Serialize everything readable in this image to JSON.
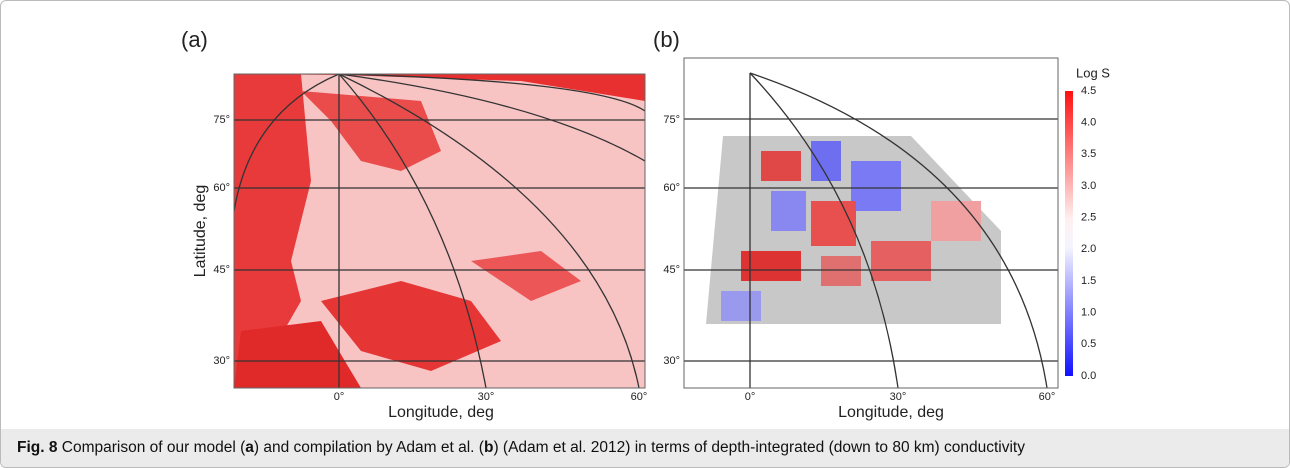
{
  "figure": {
    "panels": [
      {
        "label": "(a)",
        "y_axis_title": "Latitude, deg",
        "x_axis_title": "Longitude, deg",
        "lat_ticks": [
          "75°",
          "60°",
          "45°",
          "30°"
        ],
        "lon_ticks": [
          "0°",
          "30°",
          "60°"
        ]
      },
      {
        "label": "(b)",
        "x_axis_title": "Longitude, deg",
        "lat_ticks": [
          "75°",
          "60°",
          "45°",
          "30°"
        ],
        "lon_ticks": [
          "0°",
          "30°",
          "60°"
        ],
        "colorbar": {
          "title": "Log S",
          "ticks": [
            "4.5",
            "4.0",
            "3.5",
            "3.0",
            "2.5",
            "2.0",
            "1.5",
            "1.0",
            "0.5",
            "0.0"
          ]
        }
      }
    ],
    "caption": {
      "label": "Fig. 8",
      "parts": [
        "Comparison of our model (",
        "a",
        ") and compilation by Adam et al. (",
        "b",
        ") (Adam et al. 2012) in terms of depth-integrated (down to 80 km) conductivity"
      ]
    }
  }
}
